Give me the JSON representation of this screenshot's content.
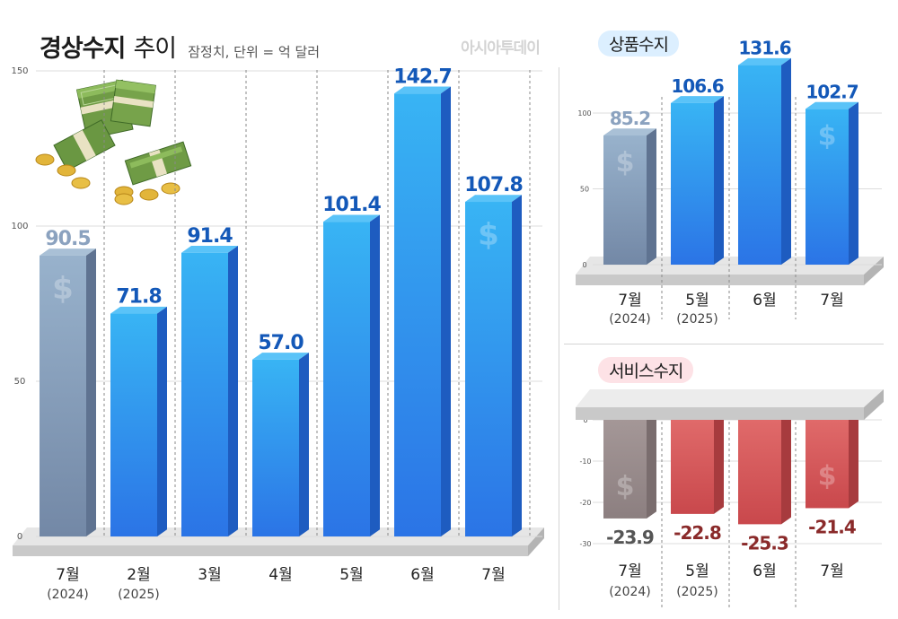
{
  "header": {
    "title": "경상수지",
    "title_suffix": "추이",
    "note": "잠정치, 단위 = 억 달러",
    "brand": "아시아투데이"
  },
  "colors": {
    "past_bar": "#8299b7",
    "current_bar": "#2f86ea",
    "positive_value": "#1358b8",
    "past_value": "#8ba2bf",
    "negative_bar": "#d8585a",
    "negative_past_bar": "#9c8e8e",
    "negative_value": "#8a2a2a"
  },
  "chart_data": [
    {
      "type": "bar",
      "title": "경상수지 추이",
      "unit": "억 달러",
      "categories": [
        "7월 (2024)",
        "2월 (2025)",
        "3월",
        "4월",
        "5월",
        "6월",
        "7월"
      ],
      "month_labels": [
        "7월",
        "2월",
        "3월",
        "4월",
        "5월",
        "6월",
        "7월"
      ],
      "year_labels": [
        "(2024)",
        "(2025)",
        "",
        "",
        "",
        "",
        ""
      ],
      "values": [
        90.5,
        71.8,
        91.4,
        57.0,
        101.4,
        142.7,
        107.8
      ],
      "value_labels": [
        "90.5",
        "71.8",
        "91.4",
        "57.0",
        "101.4",
        "142.7",
        "107.8"
      ],
      "yticks": [
        "0",
        "50",
        "100",
        "150"
      ],
      "ylim": [
        0,
        150
      ],
      "grid": "vertical dashed"
    },
    {
      "type": "bar",
      "title": "상품수지",
      "categories": [
        "7월 (2024)",
        "5월 (2025)",
        "6월",
        "7월"
      ],
      "month_labels": [
        "7월",
        "5월",
        "6월",
        "7월"
      ],
      "year_labels": [
        "(2024)",
        "(2025)",
        "",
        ""
      ],
      "values": [
        85.2,
        106.6,
        131.6,
        102.7
      ],
      "value_labels": [
        "85.2",
        "106.6",
        "131.6",
        "102.7"
      ],
      "yticks": [
        "0",
        "50",
        "100"
      ],
      "ylim": [
        0,
        120
      ]
    },
    {
      "type": "bar",
      "title": "서비스수지",
      "categories": [
        "7월 (2024)",
        "5월 (2025)",
        "6월",
        "7월"
      ],
      "month_labels": [
        "7월",
        "5월",
        "6월",
        "7월"
      ],
      "year_labels": [
        "(2024)",
        "(2025)",
        "",
        ""
      ],
      "values": [
        -23.9,
        -22.8,
        -25.3,
        -21.4
      ],
      "value_labels": [
        "-23.9",
        "-22.8",
        "-25.3",
        "-21.4"
      ],
      "yticks": [
        "0",
        "-10",
        "-20",
        "-30"
      ],
      "ylim": [
        -30,
        0
      ]
    }
  ]
}
